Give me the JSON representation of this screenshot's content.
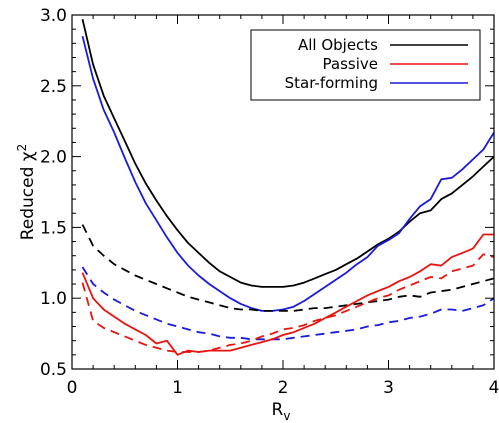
{
  "chart_data": {
    "type": "line",
    "xlabel": "R",
    "xlabel_subscript": "v",
    "ylabel": "Reduced χ",
    "ylabel_superscript": "2",
    "xlim": [
      0,
      4
    ],
    "ylim": [
      0.5,
      3.0
    ],
    "x_ticks": [
      0,
      1,
      2,
      3,
      4
    ],
    "x_tick_labels": [
      "0",
      "1",
      "2",
      "3",
      "4"
    ],
    "y_ticks": [
      0.5,
      1.0,
      1.5,
      2.0,
      2.5,
      3.0
    ],
    "y_tick_labels": [
      "0.5",
      "1.0",
      "1.5",
      "2.0",
      "2.5",
      "3.0"
    ],
    "grid": false,
    "legend_position": "top-right",
    "legend": [
      {
        "label": "All Objects",
        "color": "#000000"
      },
      {
        "label": "Passive",
        "color": "#e8140f"
      },
      {
        "label": "Star-forming",
        "color": "#1a1adb"
      }
    ],
    "series": [
      {
        "name": "All Objects",
        "color": "#000000",
        "dash": false,
        "points": [
          [
            0.1,
            2.97
          ],
          [
            0.2,
            2.65
          ],
          [
            0.3,
            2.43
          ],
          [
            0.4,
            2.27
          ],
          [
            0.5,
            2.11
          ],
          [
            0.6,
            1.95
          ],
          [
            0.7,
            1.81
          ],
          [
            0.8,
            1.69
          ],
          [
            0.9,
            1.58
          ],
          [
            1.0,
            1.48
          ],
          [
            1.1,
            1.39
          ],
          [
            1.2,
            1.32
          ],
          [
            1.3,
            1.25
          ],
          [
            1.4,
            1.19
          ],
          [
            1.5,
            1.15
          ],
          [
            1.6,
            1.11
          ],
          [
            1.7,
            1.09
          ],
          [
            1.8,
            1.08
          ],
          [
            1.9,
            1.08
          ],
          [
            2.0,
            1.08
          ],
          [
            2.1,
            1.09
          ],
          [
            2.2,
            1.11
          ],
          [
            2.3,
            1.14
          ],
          [
            2.4,
            1.17
          ],
          [
            2.5,
            1.2
          ],
          [
            2.6,
            1.24
          ],
          [
            2.7,
            1.28
          ],
          [
            2.8,
            1.33
          ],
          [
            2.9,
            1.38
          ],
          [
            3.0,
            1.42
          ],
          [
            3.1,
            1.47
          ],
          [
            3.2,
            1.54
          ],
          [
            3.3,
            1.6
          ],
          [
            3.4,
            1.62
          ],
          [
            3.5,
            1.7
          ],
          [
            3.6,
            1.74
          ],
          [
            3.7,
            1.8
          ],
          [
            3.8,
            1.86
          ],
          [
            3.9,
            1.93
          ],
          [
            4.0,
            2.0
          ]
        ]
      },
      {
        "name": "Star-forming",
        "color": "#1a1adb",
        "dash": false,
        "points": [
          [
            0.1,
            2.85
          ],
          [
            0.2,
            2.55
          ],
          [
            0.3,
            2.33
          ],
          [
            0.4,
            2.17
          ],
          [
            0.5,
            1.99
          ],
          [
            0.6,
            1.82
          ],
          [
            0.7,
            1.67
          ],
          [
            0.8,
            1.55
          ],
          [
            0.9,
            1.43
          ],
          [
            1.0,
            1.32
          ],
          [
            1.1,
            1.23
          ],
          [
            1.2,
            1.16
          ],
          [
            1.3,
            1.1
          ],
          [
            1.4,
            1.05
          ],
          [
            1.5,
            1.0
          ],
          [
            1.6,
            0.96
          ],
          [
            1.7,
            0.93
          ],
          [
            1.8,
            0.91
          ],
          [
            1.9,
            0.91
          ],
          [
            2.0,
            0.92
          ],
          [
            2.1,
            0.94
          ],
          [
            2.2,
            0.98
          ],
          [
            2.3,
            1.03
          ],
          [
            2.4,
            1.08
          ],
          [
            2.5,
            1.13
          ],
          [
            2.6,
            1.18
          ],
          [
            2.7,
            1.24
          ],
          [
            2.8,
            1.29
          ],
          [
            2.9,
            1.37
          ],
          [
            3.0,
            1.41
          ],
          [
            3.1,
            1.46
          ],
          [
            3.2,
            1.56
          ],
          [
            3.3,
            1.65
          ],
          [
            3.4,
            1.7
          ],
          [
            3.5,
            1.84
          ],
          [
            3.6,
            1.85
          ],
          [
            3.7,
            1.91
          ],
          [
            3.8,
            1.98
          ],
          [
            3.9,
            2.05
          ],
          [
            4.0,
            2.17
          ]
        ]
      },
      {
        "name": "All Objects (dashed)",
        "color": "#000000",
        "dash": true,
        "points": [
          [
            0.1,
            1.52
          ],
          [
            0.2,
            1.37
          ],
          [
            0.3,
            1.3
          ],
          [
            0.4,
            1.24
          ],
          [
            0.5,
            1.2
          ],
          [
            0.6,
            1.16
          ],
          [
            0.7,
            1.13
          ],
          [
            0.8,
            1.1
          ],
          [
            0.9,
            1.07
          ],
          [
            1.0,
            1.04
          ],
          [
            1.1,
            1.01
          ],
          [
            1.2,
            0.99
          ],
          [
            1.3,
            0.97
          ],
          [
            1.4,
            0.95
          ],
          [
            1.5,
            0.93
          ],
          [
            1.6,
            0.92
          ],
          [
            1.7,
            0.92
          ],
          [
            1.8,
            0.91
          ],
          [
            1.9,
            0.91
          ],
          [
            2.0,
            0.91
          ],
          [
            2.1,
            0.91
          ],
          [
            2.2,
            0.92
          ],
          [
            2.3,
            0.93
          ],
          [
            2.4,
            0.93
          ],
          [
            2.5,
            0.94
          ],
          [
            2.6,
            0.95
          ],
          [
            2.7,
            0.96
          ],
          [
            2.8,
            0.97
          ],
          [
            2.9,
            0.98
          ],
          [
            3.0,
            0.99
          ],
          [
            3.1,
            1.01
          ],
          [
            3.2,
            1.02
          ],
          [
            3.3,
            1.01
          ],
          [
            3.4,
            1.04
          ],
          [
            3.5,
            1.05
          ],
          [
            3.6,
            1.06
          ],
          [
            3.7,
            1.08
          ],
          [
            3.8,
            1.1
          ],
          [
            3.9,
            1.12
          ],
          [
            4.0,
            1.14
          ]
        ]
      },
      {
        "name": "Star-forming (dashed)",
        "color": "#1a1adb",
        "dash": true,
        "points": [
          [
            0.1,
            1.22
          ],
          [
            0.2,
            1.1
          ],
          [
            0.3,
            1.04
          ],
          [
            0.4,
            0.99
          ],
          [
            0.5,
            0.95
          ],
          [
            0.6,
            0.91
          ],
          [
            0.7,
            0.88
          ],
          [
            0.8,
            0.85
          ],
          [
            0.9,
            0.82
          ],
          [
            1.0,
            0.8
          ],
          [
            1.1,
            0.78
          ],
          [
            1.2,
            0.76
          ],
          [
            1.3,
            0.75
          ],
          [
            1.4,
            0.73
          ],
          [
            1.5,
            0.72
          ],
          [
            1.6,
            0.72
          ],
          [
            1.7,
            0.71
          ],
          [
            1.8,
            0.71
          ],
          [
            1.9,
            0.71
          ],
          [
            2.0,
            0.71
          ],
          [
            2.1,
            0.72
          ],
          [
            2.2,
            0.73
          ],
          [
            2.3,
            0.74
          ],
          [
            2.4,
            0.75
          ],
          [
            2.5,
            0.76
          ],
          [
            2.6,
            0.77
          ],
          [
            2.7,
            0.78
          ],
          [
            2.8,
            0.8
          ],
          [
            2.9,
            0.81
          ],
          [
            3.0,
            0.83
          ],
          [
            3.1,
            0.84
          ],
          [
            3.2,
            0.86
          ],
          [
            3.3,
            0.87
          ],
          [
            3.4,
            0.89
          ],
          [
            3.5,
            0.92
          ],
          [
            3.6,
            0.92
          ],
          [
            3.7,
            0.91
          ],
          [
            3.8,
            0.93
          ],
          [
            3.9,
            0.95
          ],
          [
            4.0,
            1.0
          ]
        ]
      },
      {
        "name": "Passive",
        "color": "#e8140f",
        "dash": false,
        "points": [
          [
            0.1,
            1.18
          ],
          [
            0.2,
            1.0
          ],
          [
            0.3,
            0.92
          ],
          [
            0.4,
            0.87
          ],
          [
            0.5,
            0.82
          ],
          [
            0.6,
            0.78
          ],
          [
            0.7,
            0.74
          ],
          [
            0.8,
            0.68
          ],
          [
            0.9,
            0.7
          ],
          [
            1.0,
            0.6
          ],
          [
            1.1,
            0.63
          ],
          [
            1.2,
            0.62
          ],
          [
            1.3,
            0.63
          ],
          [
            1.4,
            0.63
          ],
          [
            1.5,
            0.63
          ],
          [
            1.6,
            0.65
          ],
          [
            1.7,
            0.67
          ],
          [
            1.8,
            0.69
          ],
          [
            1.9,
            0.71
          ],
          [
            2.0,
            0.74
          ],
          [
            2.1,
            0.76
          ],
          [
            2.2,
            0.79
          ],
          [
            2.3,
            0.82
          ],
          [
            2.4,
            0.86
          ],
          [
            2.5,
            0.9
          ],
          [
            2.6,
            0.94
          ],
          [
            2.7,
            0.98
          ],
          [
            2.8,
            1.02
          ],
          [
            2.9,
            1.05
          ],
          [
            3.0,
            1.08
          ],
          [
            3.1,
            1.12
          ],
          [
            3.2,
            1.15
          ],
          [
            3.3,
            1.19
          ],
          [
            3.4,
            1.24
          ],
          [
            3.5,
            1.23
          ],
          [
            3.6,
            1.29
          ],
          [
            3.7,
            1.32
          ],
          [
            3.8,
            1.35
          ],
          [
            3.9,
            1.45
          ],
          [
            4.0,
            1.45
          ]
        ]
      },
      {
        "name": "Passive (dashed)",
        "color": "#e8140f",
        "dash": true,
        "points": [
          [
            0.1,
            1.11
          ],
          [
            0.2,
            0.84
          ],
          [
            0.3,
            0.79
          ],
          [
            0.4,
            0.76
          ],
          [
            0.5,
            0.73
          ],
          [
            0.6,
            0.7
          ],
          [
            0.7,
            0.67
          ],
          [
            0.8,
            0.65
          ],
          [
            0.9,
            0.63
          ],
          [
            1.0,
            0.62
          ],
          [
            1.1,
            0.62
          ],
          [
            1.2,
            0.62
          ],
          [
            1.3,
            0.63
          ],
          [
            1.4,
            0.65
          ],
          [
            1.5,
            0.67
          ],
          [
            1.6,
            0.68
          ],
          [
            1.7,
            0.7
          ],
          [
            1.8,
            0.73
          ],
          [
            1.9,
            0.75
          ],
          [
            2.0,
            0.78
          ],
          [
            2.1,
            0.79
          ],
          [
            2.2,
            0.81
          ],
          [
            2.3,
            0.84
          ],
          [
            2.4,
            0.86
          ],
          [
            2.5,
            0.88
          ],
          [
            2.6,
            0.91
          ],
          [
            2.7,
            0.94
          ],
          [
            2.8,
            0.97
          ],
          [
            2.9,
            1.0
          ],
          [
            3.0,
            1.02
          ],
          [
            3.1,
            1.06
          ],
          [
            3.2,
            1.09
          ],
          [
            3.3,
            1.12
          ],
          [
            3.4,
            1.15
          ],
          [
            3.5,
            1.14
          ],
          [
            3.6,
            1.19
          ],
          [
            3.7,
            1.21
          ],
          [
            3.8,
            1.23
          ],
          [
            3.9,
            1.31
          ],
          [
            4.0,
            1.29
          ]
        ]
      }
    ]
  }
}
